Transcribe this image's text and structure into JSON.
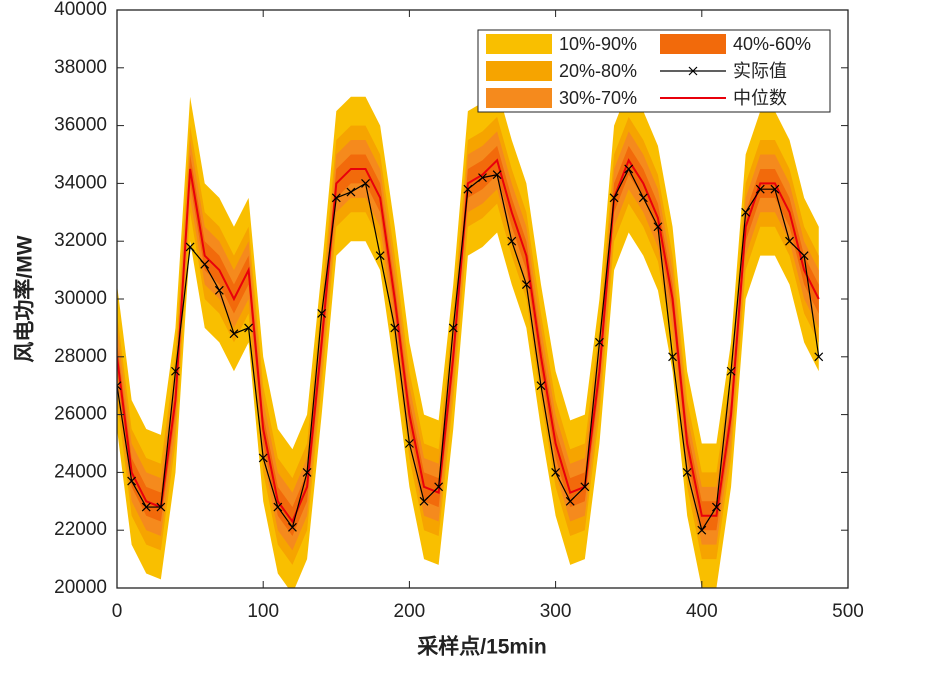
{
  "chart_data": {
    "type": "line",
    "xlabel": "采样点/15min",
    "ylabel": "风电功率/MW",
    "xlim": [
      0,
      500
    ],
    "xticks": [
      0,
      100,
      200,
      300,
      400,
      500
    ],
    "ylim": [
      20000,
      40000
    ],
    "yticks": [
      20000,
      22000,
      24000,
      26000,
      28000,
      30000,
      32000,
      34000,
      36000,
      38000,
      40000
    ],
    "x": [
      0,
      10,
      20,
      30,
      40,
      50,
      60,
      70,
      80,
      90,
      100,
      110,
      120,
      130,
      140,
      150,
      160,
      170,
      180,
      190,
      200,
      210,
      220,
      230,
      240,
      250,
      260,
      270,
      280,
      290,
      300,
      310,
      320,
      330,
      340,
      350,
      360,
      370,
      380,
      390,
      400,
      410,
      420,
      430,
      440,
      450,
      460,
      470,
      480
    ],
    "bands": [
      {
        "name": "10%-90%",
        "color": "#f9bf00",
        "lower": [
          25500,
          21500,
          20500,
          20300,
          24000,
          32000,
          29000,
          28500,
          27500,
          28500,
          23000,
          20500,
          19800,
          21000,
          26000,
          31500,
          32000,
          32000,
          31000,
          27500,
          23500,
          21000,
          20800,
          25500,
          31500,
          31800,
          32300,
          30500,
          29000,
          25500,
          22500,
          20800,
          21000,
          25000,
          31000,
          32300,
          31500,
          30300,
          27500,
          22500,
          20000,
          20000,
          23500,
          30000,
          31500,
          31500,
          30500,
          28500,
          27500
        ],
        "upper": [
          30500,
          26500,
          25500,
          25300,
          29000,
          37000,
          34000,
          33500,
          32500,
          33500,
          28000,
          25500,
          24800,
          26000,
          31000,
          36500,
          37000,
          37000,
          36000,
          32500,
          28500,
          26000,
          25800,
          30500,
          36500,
          36800,
          37300,
          35500,
          34000,
          30500,
          27500,
          25800,
          26000,
          30000,
          36000,
          37300,
          36500,
          35300,
          32500,
          27500,
          25000,
          25000,
          28500,
          35000,
          36500,
          36500,
          35500,
          33500,
          32500
        ]
      },
      {
        "name": "20%-80%",
        "color": "#f6a400",
        "lower": [
          26500,
          22500,
          21500,
          21300,
          25000,
          33000,
          30000,
          29500,
          28500,
          29500,
          24000,
          21500,
          20800,
          22000,
          27000,
          32500,
          33000,
          33000,
          32000,
          28500,
          24500,
          22000,
          21800,
          26500,
          32500,
          32800,
          33300,
          31500,
          30000,
          26500,
          23500,
          21800,
          22000,
          26000,
          32000,
          33300,
          32500,
          31300,
          28500,
          23500,
          21000,
          21000,
          24500,
          31000,
          32500,
          32500,
          31500,
          29500,
          28500
        ],
        "upper": [
          29500,
          25500,
          24500,
          24300,
          28000,
          36000,
          33000,
          32500,
          31500,
          32500,
          27000,
          24500,
          23800,
          25000,
          30000,
          35500,
          36000,
          36000,
          35000,
          31500,
          27500,
          25000,
          24800,
          29500,
          35500,
          35800,
          36300,
          34500,
          33000,
          29500,
          26500,
          24800,
          25000,
          29000,
          35000,
          36300,
          35500,
          34300,
          31500,
          26500,
          24000,
          24000,
          27500,
          34000,
          35500,
          35500,
          34500,
          32500,
          31500
        ]
      },
      {
        "name": "30%-70%",
        "color": "#f58a1d",
        "lower": [
          27000,
          23000,
          22000,
          21800,
          25500,
          33500,
          30500,
          30000,
          29000,
          30000,
          24500,
          22000,
          21300,
          22500,
          27500,
          33000,
          33500,
          33500,
          32500,
          29000,
          25000,
          22500,
          22300,
          27000,
          33000,
          33300,
          33800,
          32000,
          30500,
          27000,
          24000,
          22300,
          22500,
          26500,
          32500,
          33800,
          33000,
          31800,
          29000,
          24000,
          21500,
          21500,
          25000,
          31500,
          33000,
          33000,
          32000,
          30000,
          29000
        ],
        "upper": [
          29000,
          25000,
          24000,
          23800,
          27500,
          35500,
          32500,
          32000,
          31000,
          32000,
          26500,
          24000,
          23300,
          24500,
          29500,
          35000,
          35500,
          35500,
          34500,
          31000,
          27000,
          24500,
          24300,
          29000,
          35000,
          35300,
          35800,
          34000,
          32500,
          29000,
          26000,
          24300,
          24500,
          28500,
          34500,
          35800,
          35000,
          33800,
          31000,
          26000,
          23500,
          23500,
          27000,
          33500,
          35000,
          35000,
          34000,
          32000,
          31000
        ]
      },
      {
        "name": "40%-60%",
        "color": "#f26a0b",
        "lower": [
          27500,
          23500,
          22500,
          22300,
          26000,
          34000,
          31000,
          30500,
          29500,
          30500,
          25000,
          22500,
          21800,
          23000,
          28000,
          33500,
          34000,
          34000,
          33000,
          29500,
          25500,
          23000,
          22800,
          27500,
          33500,
          33800,
          34300,
          32500,
          31000,
          27500,
          24500,
          22800,
          23000,
          27000,
          33000,
          34300,
          33500,
          32300,
          29500,
          24500,
          22000,
          22000,
          25500,
          32000,
          33500,
          33500,
          32500,
          30500,
          29500
        ],
        "upper": [
          28500,
          24500,
          23500,
          23300,
          27000,
          35000,
          32000,
          31500,
          30500,
          31500,
          26000,
          23500,
          22800,
          24000,
          29000,
          34500,
          35000,
          35000,
          34000,
          30500,
          26500,
          24000,
          23800,
          28500,
          34500,
          34800,
          35300,
          33500,
          32000,
          28500,
          25500,
          23800,
          24000,
          28000,
          34000,
          35300,
          34500,
          33300,
          30500,
          25500,
          23000,
          23000,
          26500,
          33000,
          34500,
          34500,
          33500,
          31500,
          30500
        ]
      }
    ],
    "series": [
      {
        "name": "实际值",
        "color": "#000000",
        "marker": "x",
        "values": [
          27000,
          23700,
          22800,
          22800,
          27500,
          31800,
          31200,
          30300,
          28800,
          29000,
          24500,
          22800,
          22100,
          24000,
          29500,
          33500,
          33700,
          34000,
          31500,
          29000,
          25000,
          23000,
          23500,
          29000,
          33800,
          34200,
          34300,
          32000,
          30500,
          27000,
          24000,
          23000,
          23500,
          28500,
          33500,
          34500,
          33500,
          32500,
          28000,
          24000,
          22000,
          22800,
          27500,
          33000,
          33800,
          33800,
          32000,
          31500,
          28000
        ]
      },
      {
        "name": "中位数",
        "color": "#e8000b",
        "values": [
          28000,
          24000,
          23000,
          22800,
          26500,
          34500,
          31500,
          31000,
          30000,
          31000,
          25500,
          23000,
          22300,
          23500,
          28500,
          34000,
          34500,
          34500,
          33500,
          30000,
          26000,
          23500,
          23300,
          28000,
          34000,
          34300,
          34800,
          33000,
          31500,
          28000,
          25000,
          23300,
          23500,
          27500,
          33500,
          34800,
          34000,
          32800,
          30000,
          25000,
          22500,
          22500,
          26000,
          32500,
          34000,
          34000,
          33000,
          31000,
          30000
        ]
      }
    ]
  }
}
